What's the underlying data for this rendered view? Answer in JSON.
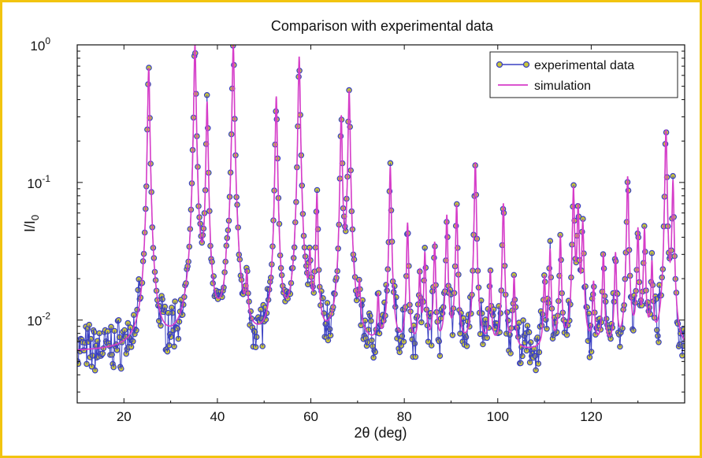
{
  "chart_data": {
    "type": "line",
    "title": "Comparison with experimental data",
    "xlabel_prefix": "2",
    "xlabel_symbol": "θ",
    "xlabel_suffix": " (deg)",
    "ylabel_main": "I/I",
    "ylabel_sub": "0",
    "xlim": [
      10,
      140
    ],
    "ylim": [
      0.0025,
      1.0
    ],
    "yscale": "log",
    "grid": false,
    "legend_position": "top-right",
    "x_ticks": [
      20,
      40,
      60,
      80,
      100,
      120
    ],
    "x_tick_labels": [
      "20",
      "40",
      "60",
      "80",
      "100",
      "120"
    ],
    "y_ticks": [
      {
        "value": 0.01,
        "base": "10",
        "exp": "-2"
      },
      {
        "value": 0.1,
        "base": "10",
        "exp": "-1"
      },
      {
        "value": 1.0,
        "base": "10",
        "exp": "0"
      }
    ],
    "baseline": 0.0058,
    "peak_width": 0.2,
    "peaks": [
      {
        "x": 25.3,
        "y": 0.68
      },
      {
        "x": 35.2,
        "y": 1.0
      },
      {
        "x": 37.8,
        "y": 0.38
      },
      {
        "x": 42.0,
        "y": 0.015
      },
      {
        "x": 43.4,
        "y": 1.0
      },
      {
        "x": 46.3,
        "y": 0.017
      },
      {
        "x": 52.6,
        "y": 0.42
      },
      {
        "x": 57.5,
        "y": 0.82
      },
      {
        "x": 59.8,
        "y": 0.025
      },
      {
        "x": 61.3,
        "y": 0.08
      },
      {
        "x": 66.5,
        "y": 0.3
      },
      {
        "x": 68.2,
        "y": 0.46
      },
      {
        "x": 70.4,
        "y": 0.015
      },
      {
        "x": 74.4,
        "y": 0.014
      },
      {
        "x": 77.0,
        "y": 0.13
      },
      {
        "x": 80.7,
        "y": 0.05
      },
      {
        "x": 83.3,
        "y": 0.022
      },
      {
        "x": 84.4,
        "y": 0.03
      },
      {
        "x": 86.5,
        "y": 0.036
      },
      {
        "x": 89.1,
        "y": 0.057
      },
      {
        "x": 91.2,
        "y": 0.068
      },
      {
        "x": 95.2,
        "y": 0.14
      },
      {
        "x": 98.4,
        "y": 0.022
      },
      {
        "x": 101.2,
        "y": 0.07
      },
      {
        "x": 103.5,
        "y": 0.02
      },
      {
        "x": 110.0,
        "y": 0.02
      },
      {
        "x": 111.2,
        "y": 0.032
      },
      {
        "x": 113.4,
        "y": 0.04
      },
      {
        "x": 116.2,
        "y": 0.09
      },
      {
        "x": 117.2,
        "y": 0.065
      },
      {
        "x": 118.2,
        "y": 0.05
      },
      {
        "x": 120.5,
        "y": 0.018
      },
      {
        "x": 122.6,
        "y": 0.03
      },
      {
        "x": 125.2,
        "y": 0.03
      },
      {
        "x": 127.8,
        "y": 0.11
      },
      {
        "x": 130.0,
        "y": 0.045
      },
      {
        "x": 131.4,
        "y": 0.045
      },
      {
        "x": 133.0,
        "y": 0.025
      },
      {
        "x": 136.0,
        "y": 0.24
      },
      {
        "x": 137.5,
        "y": 0.1
      }
    ],
    "series": [
      {
        "name": "experimental data",
        "color": "#3a40c2",
        "marker": "circle",
        "marker_fill": "#c9c63a",
        "noise": 0.33,
        "x_step": 0.18
      },
      {
        "name": "simulation",
        "color": "#d63cc8",
        "marker": "none"
      }
    ]
  }
}
